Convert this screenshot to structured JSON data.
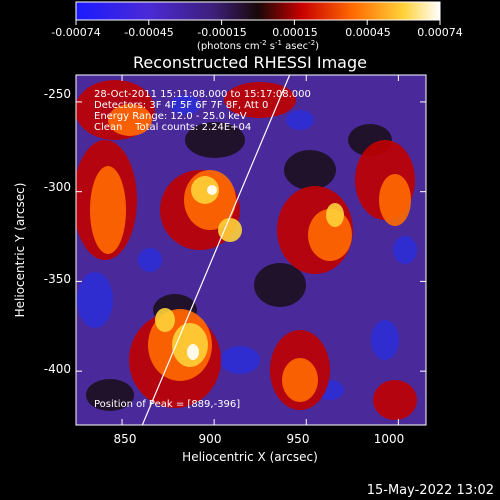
{
  "colorbar": {
    "ticks": [
      "-0.00074",
      "-0.00045",
      "-0.00015",
      "0.00015",
      "0.00045",
      "0.00074"
    ],
    "units": "(photons cm",
    "units_exp1": "-2",
    "units_mid": " s",
    "units_exp2": "-1",
    "units_mid2": " asec",
    "units_exp3": "-2",
    "units_end": ")"
  },
  "image_info": {
    "time_range": "28-Oct-2011 15:11:08.000 to 15:17:08.000",
    "detectors": "Detectors: 3F 4F 5F 6F 7F 8F, Att 0",
    "energy": "Energy Range: 12.0 - 25.0 keV",
    "method": "Clean    Total counts: 2.24E+04",
    "peak": "Position of Peak = [889,-396]"
  },
  "footer": {
    "timestamp": "15-May-2022 13:02"
  },
  "chart_data": {
    "type": "heatmap",
    "title": "Reconstructed RHESSI Image",
    "xlabel": "Heliocentric X (arcsec)",
    "ylabel": "Heliocentric Y (arcsec)",
    "xlim": [
      825,
      1015
    ],
    "ylim": [
      -430,
      -235
    ],
    "xticks": [
      850,
      900,
      950,
      1000
    ],
    "xtick_labels": [
      "850",
      "900",
      "950",
      "1000"
    ],
    "yticks": [
      -250,
      -300,
      -350,
      -400
    ],
    "ytick_labels": [
      "-250",
      "-300",
      "-350",
      "-400"
    ],
    "color_range": [
      -0.00074,
      0.00074
    ],
    "colormap": "blue-purple-red-yellow-white",
    "limb_line": [
      [
        861,
        -430
      ],
      [
        941,
        -235
      ]
    ],
    "peak": [
      889,
      -396
    ]
  }
}
